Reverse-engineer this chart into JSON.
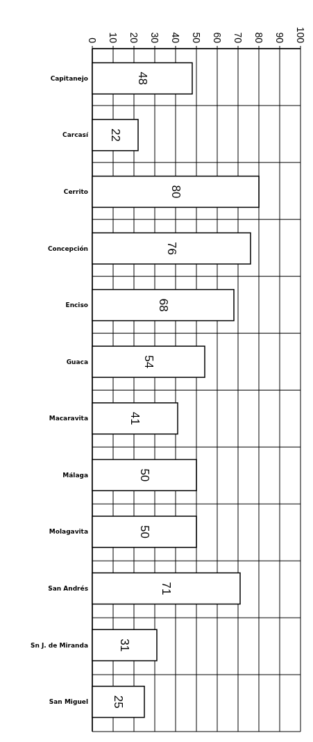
{
  "chart_data": {
    "type": "bar",
    "orientation": "horizontal",
    "categories": [
      "Capitanejo",
      "Carcasí",
      "Cerrito",
      "Concepción",
      "Enciso",
      "Guaca",
      "Macaravita",
      "Málaga",
      "Molagavita",
      "San Andrés",
      "Sn J. de Miranda",
      "San Miguel"
    ],
    "values": [
      48,
      22,
      80,
      76,
      68,
      54,
      41,
      50,
      50,
      71,
      31,
      25
    ],
    "color": "#ffffff",
    "xlim": [
      0,
      100
    ],
    "xticks": [
      0,
      10,
      20,
      30,
      40,
      50,
      60,
      70,
      80,
      90,
      100
    ],
    "grid": true,
    "data_labels": true
  }
}
